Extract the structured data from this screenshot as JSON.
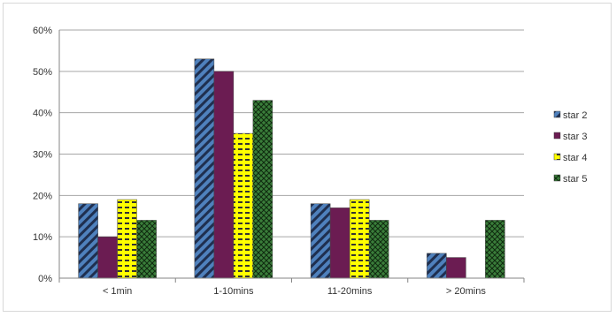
{
  "chart_data": {
    "type": "bar",
    "categories": [
      "< 1min",
      "1-10mins",
      "11-20mins",
      "> 20mins"
    ],
    "series": [
      {
        "name": "star 2",
        "values": [
          18,
          53,
          18,
          6
        ],
        "color": "#4f81bd",
        "pattern": "diagonal-stripes"
      },
      {
        "name": "star 3",
        "values": [
          10,
          50,
          17,
          5
        ],
        "color": "#6b1c52",
        "pattern": "solid"
      },
      {
        "name": "star 4",
        "values": [
          19,
          35,
          19,
          0
        ],
        "color": "#ffff00",
        "pattern": "horizontal-dashes"
      },
      {
        "name": "star 5",
        "values": [
          14,
          43,
          14,
          14
        ],
        "color": "#3a7d3a",
        "pattern": "crosshatch"
      }
    ],
    "ylim": [
      0,
      60
    ],
    "yticks": [
      "0%",
      "10%",
      "20%",
      "30%",
      "40%",
      "50%",
      "60%"
    ],
    "grid": true,
    "legend_position": "right"
  }
}
